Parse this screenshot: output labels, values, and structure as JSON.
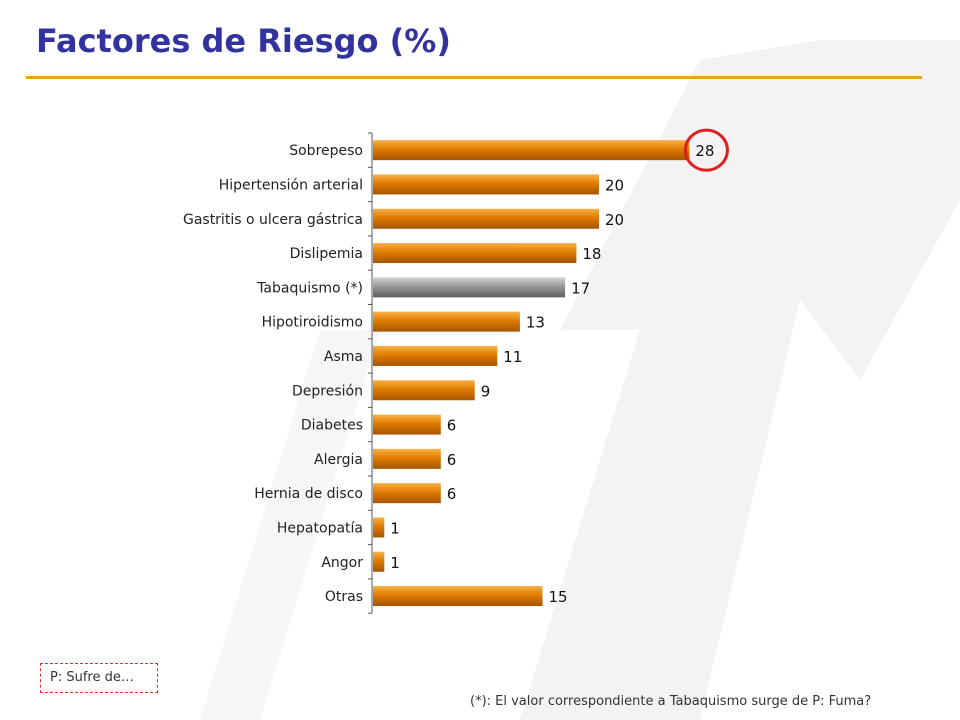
{
  "title": "Factores de Riesgo (%)",
  "note": "P: Sufre de…",
  "footnote": "(*): El valor correspondiente a Tabaquismo surge de P: Fuma?",
  "colors": {
    "bar": "#e07b00",
    "highlight_bar": "#9a9a9a",
    "title": "#3333a0",
    "rule": "#f0a020",
    "circle": "#e02020"
  },
  "chart_data": {
    "type": "bar",
    "orientation": "horizontal",
    "categories": [
      "Sobrepeso",
      "Hipertensión arterial",
      "Gastritis o ulcera gástrica",
      "Dislipemia",
      "Tabaquismo (*)",
      "Hipotiroidismo",
      "Asma",
      "Depresión",
      "Diabetes",
      "Alergia",
      "Hernia de disco",
      "Hepatopatía",
      "Angor",
      "Otras"
    ],
    "values": [
      28,
      20,
      20,
      18,
      17,
      13,
      11,
      9,
      6,
      6,
      6,
      1,
      1,
      15
    ],
    "highlighted_category": "Tabaquismo (*)",
    "circled_category": "Sobrepeso",
    "xlim": [
      0,
      30
    ],
    "grid": false,
    "legend": "none"
  }
}
